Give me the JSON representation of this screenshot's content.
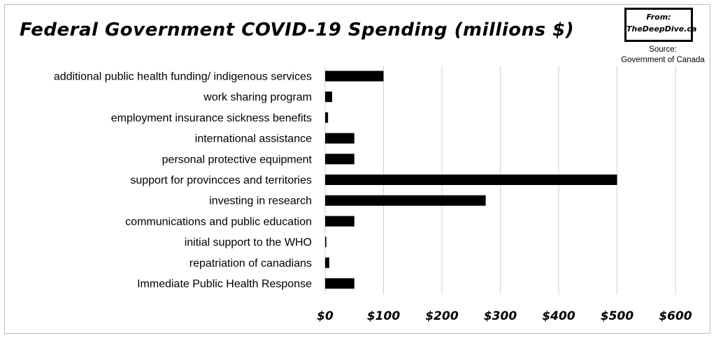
{
  "header": {
    "title": "Federal Government COVID-19 Spending (millions $)",
    "brand_from": "From:",
    "brand_site": "TheDeepDive.ca",
    "source_label": "Source:",
    "source_value": "Government of Canada"
  },
  "chart_data": {
    "type": "bar",
    "orientation": "horizontal",
    "title": "Federal Government COVID-19 Spending (millions $)",
    "categories": [
      "additional public health funding/ indigenous services",
      "work sharing program",
      "employment insurance sickness benefits",
      "international assistance",
      "personal protective equipment",
      "support for provincces and territories",
      "investing in research",
      "communications and public education",
      "initial support to the WHO",
      "repatriation of canadians",
      "Immediate Public Health Response"
    ],
    "values": [
      100,
      12,
      5,
      50,
      50,
      500,
      275,
      50,
      2,
      7,
      50
    ],
    "xlim": [
      0,
      600
    ],
    "xticks": [
      0,
      100,
      200,
      300,
      400,
      500,
      600
    ],
    "xtick_labels": [
      "$0",
      "$100",
      "$200",
      "$300",
      "$400",
      "$500",
      "$600"
    ],
    "grid": "vertical",
    "bar_color": "#000000",
    "grid_color": "#d0d0d0"
  }
}
